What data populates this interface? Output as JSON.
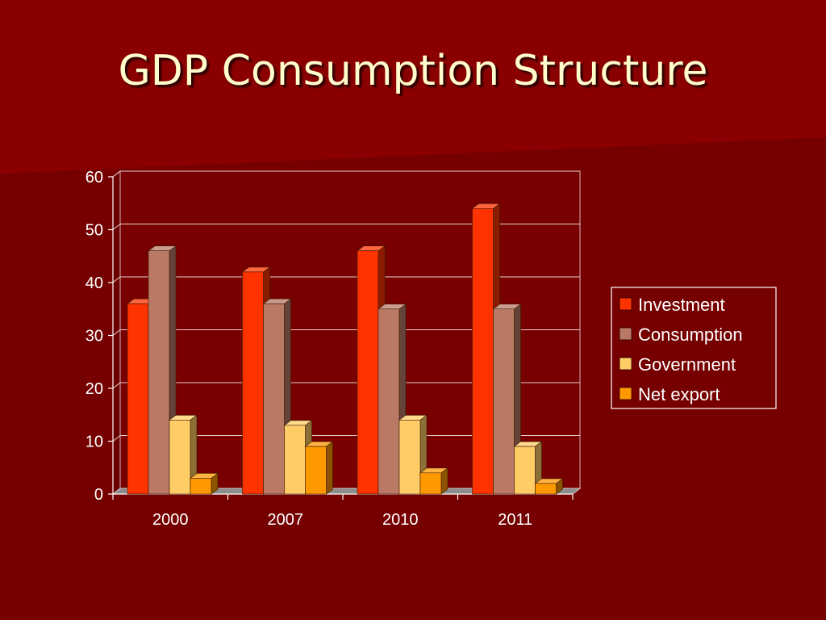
{
  "slide": {
    "title": "GDP Consumption Structure",
    "background_color": "#760000",
    "band_color": "#8a0000"
  },
  "chart_data": {
    "type": "bar",
    "title": "",
    "xlabel": "",
    "ylabel": "",
    "categories": [
      "2000",
      "2007",
      "2010",
      "2011"
    ],
    "series": [
      {
        "name": "Investment",
        "values": [
          36,
          42,
          46,
          54
        ],
        "color": "#ff3300"
      },
      {
        "name": "Consumption",
        "values": [
          46,
          36,
          35,
          35
        ],
        "color": "#b97965"
      },
      {
        "name": "Government",
        "values": [
          14,
          13,
          14,
          9
        ],
        "color": "#ffcc66"
      },
      {
        "name": "Net export",
        "values": [
          3,
          9,
          4,
          2
        ],
        "color": "#ff9900"
      }
    ],
    "ylim": [
      0,
      60
    ],
    "yticks": [
      0,
      10,
      20,
      30,
      40,
      50,
      60
    ],
    "grid": true,
    "legend_position": "right",
    "style": "3d-bar"
  }
}
